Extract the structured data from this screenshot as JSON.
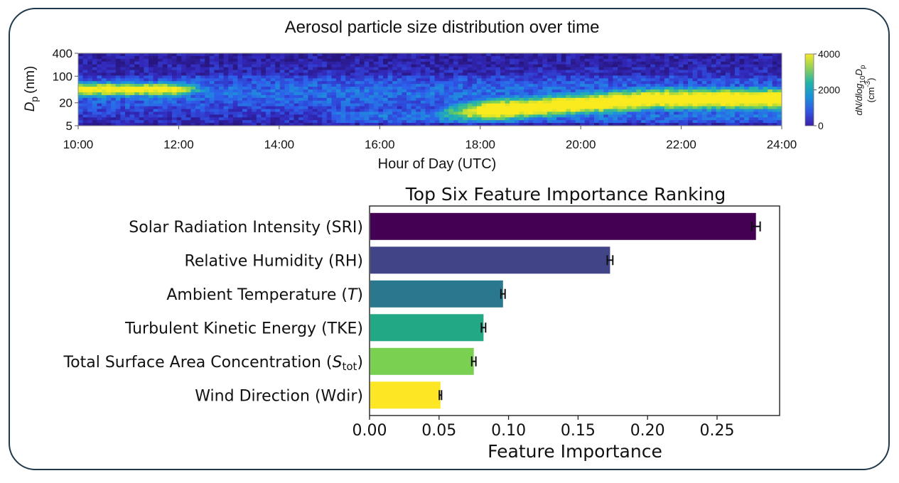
{
  "chart_data": [
    {
      "type": "heatmap",
      "title": "Aerosol particle size distribution over time",
      "xlabel": "Hour of Day (UTC)",
      "ylabel_main": "D",
      "ylabel_sub": "p",
      "ylabel_unit": "(nm)",
      "x_ticks": [
        "10:00",
        "12:00",
        "14:00",
        "16:00",
        "18:00",
        "20:00",
        "22:00",
        "24:00"
      ],
      "xlim": [
        10,
        24
      ],
      "y_scale": "log",
      "y_ticks": [
        {
          "label": "400",
          "value": 400
        },
        {
          "label": "100",
          "value": 100
        },
        {
          "label": "20",
          "value": 20
        },
        {
          "label": "5",
          "value": 5
        }
      ],
      "ylim": [
        5,
        400
      ],
      "colorbar": {
        "ticks": [
          {
            "label": "4000",
            "value": 4000
          },
          {
            "label": "2000",
            "value": 2000
          },
          {
            "label": "0",
            "value": 0
          }
        ],
        "range": [
          0,
          4000
        ],
        "label_main": "dN/dlog",
        "label_sub": "10",
        "label_D": "D",
        "label_p": "p",
        "label_unit_main": "(cm",
        "label_unit_sup": "-3",
        "label_unit_end": ")",
        "colormap": "viridis"
      }
    },
    {
      "type": "bar",
      "orientation": "horizontal",
      "title": "Top Six Feature Importance Ranking",
      "xlabel": "Feature Importance",
      "xlim": [
        0,
        0.295
      ],
      "x_ticks": [
        "0.00",
        "0.05",
        "0.10",
        "0.15",
        "0.20",
        "0.25"
      ],
      "categories": [
        "Solar Radiation Intensity (SRI)",
        "Relative Humidity (RH)",
        "Ambient Temperature (T)",
        "Turbulent Kinetic Energy (TKE)",
        "Total Surface Area Concentration (Stot)",
        "Wind Direction (Wdir)"
      ],
      "label_parts": [
        {
          "pre": "Solar Radiation Intensity (SRI)",
          "ital": "",
          "sub": "",
          "post": ""
        },
        {
          "pre": "Relative Humidity (RH)",
          "ital": "",
          "sub": "",
          "post": ""
        },
        {
          "pre": "Ambient Temperature (",
          "ital": "T",
          "sub": "",
          "post": ")"
        },
        {
          "pre": "Turbulent Kinetic Energy (TKE)",
          "ital": "",
          "sub": "",
          "post": ""
        },
        {
          "pre": "Total Surface Area Concentration (",
          "ital": "S",
          "sub": "tot",
          "post": ")"
        },
        {
          "pre": "Wind Direction (Wdir)",
          "ital": "",
          "sub": "",
          "post": ""
        }
      ],
      "values": [
        0.278,
        0.173,
        0.096,
        0.082,
        0.075,
        0.051
      ],
      "errors": [
        0.003,
        0.002,
        0.0015,
        0.0015,
        0.0015,
        0.0008
      ],
      "colors": [
        "#440154",
        "#414487",
        "#2a788e",
        "#22a884",
        "#7ad151",
        "#fde725"
      ]
    }
  ]
}
